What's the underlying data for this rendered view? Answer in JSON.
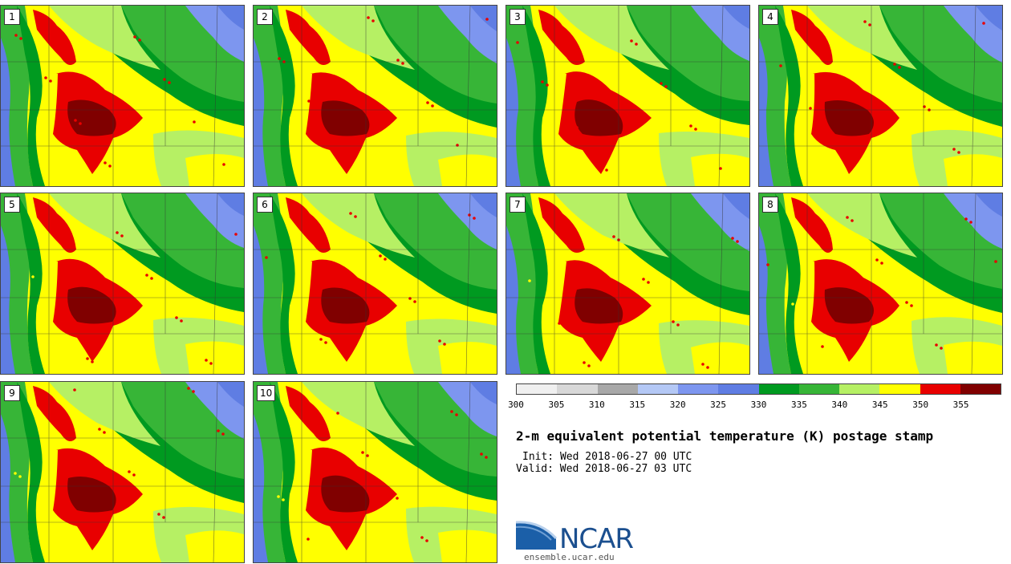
{
  "panels": [
    {
      "label": "1"
    },
    {
      "label": "2"
    },
    {
      "label": "3"
    },
    {
      "label": "4"
    },
    {
      "label": "5"
    },
    {
      "label": "6"
    },
    {
      "label": "7"
    },
    {
      "label": "8"
    },
    {
      "label": "9"
    },
    {
      "label": "10"
    }
  ],
  "colorbar": {
    "colors": [
      "#f0f0f0",
      "#d8d8d8",
      "#a8a8a8",
      "#b4c8f5",
      "#7d96ef",
      "#5f7de3",
      "#009a20",
      "#37b537",
      "#b6f064",
      "#ffff00",
      "#e80000",
      "#800000"
    ],
    "ticks": [
      "300",
      "305",
      "310",
      "315",
      "320",
      "325",
      "330",
      "335",
      "340",
      "345",
      "350",
      "355"
    ]
  },
  "title": "2-m equivalent potential temperature (K) postage stamp",
  "init": "Init: Wed 2018-06-27 00 UTC",
  "valid": "Valid: Wed 2018-06-27 03 UTC",
  "logo": {
    "name": "NCAR",
    "url": "ensemble.ucar.edu"
  }
}
